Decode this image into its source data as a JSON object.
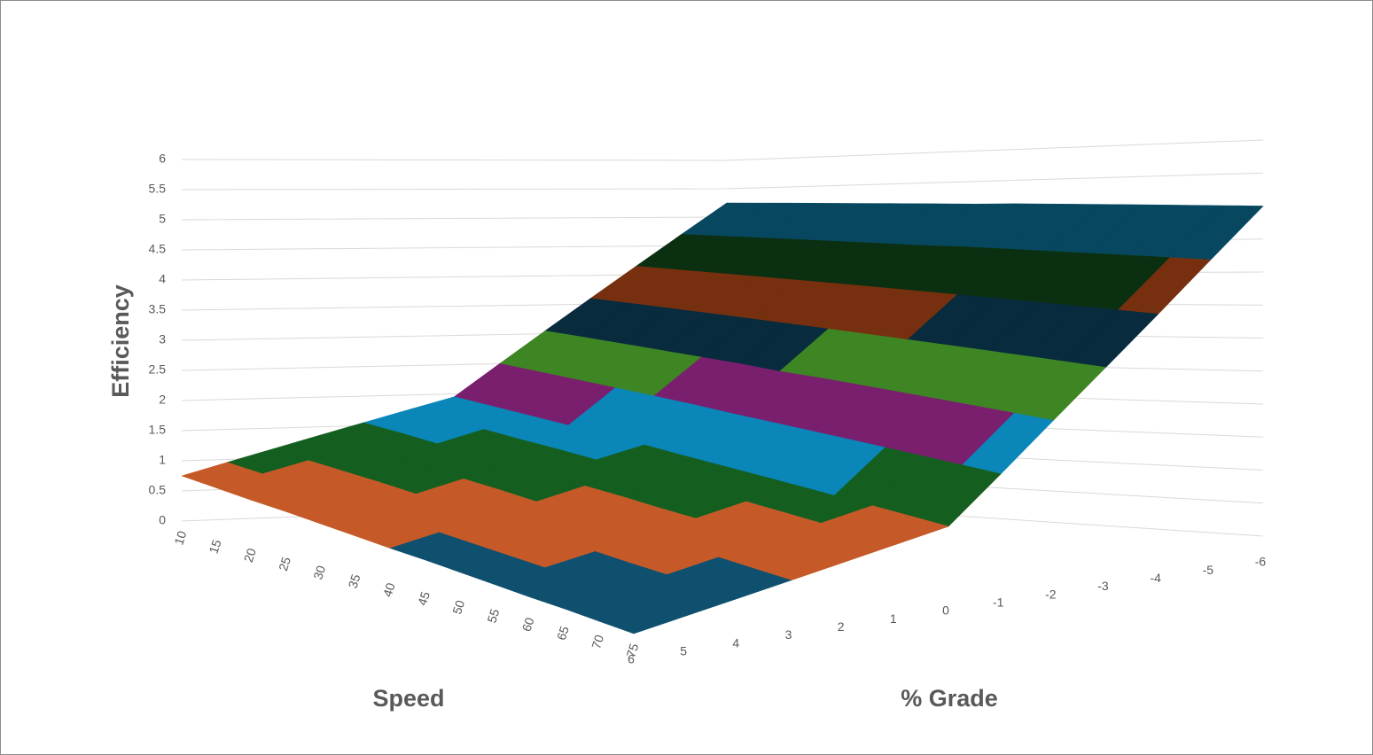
{
  "chart_data": {
    "type": "surface",
    "x_label": "Speed",
    "y_label": "% Grade",
    "z_label": "Efficiency",
    "x": [
      10,
      15,
      20,
      25,
      30,
      35,
      40,
      45,
      50,
      55,
      60,
      65,
      70,
      75
    ],
    "y": [
      6,
      5,
      4,
      3,
      2,
      1,
      0,
      -1,
      -2,
      -3,
      -4,
      -5,
      -6
    ],
    "values": [
      [
        0.75,
        0.95,
        1.15,
        1.35,
        1.55,
        1.75,
        1.95,
        2.5,
        3.05,
        3.6,
        4.15,
        4.7,
        5.25
      ],
      [
        0.69,
        0.89,
        1.08,
        1.28,
        1.48,
        1.67,
        1.87,
        2.43,
        2.99,
        3.55,
        4.11,
        4.67,
        5.23
      ],
      [
        0.63,
        0.82,
        1.02,
        1.21,
        1.4,
        1.6,
        1.79,
        2.36,
        2.93,
        3.5,
        4.07,
        4.64,
        5.21
      ],
      [
        0.58,
        0.77,
        0.96,
        1.14,
        1.33,
        1.52,
        1.71,
        2.29,
        2.87,
        3.45,
        4.03,
        4.61,
        5.19
      ],
      [
        0.52,
        0.71,
        0.89,
        1.08,
        1.26,
        1.45,
        1.63,
        2.22,
        2.81,
        3.4,
        3.99,
        4.58,
        5.17
      ],
      [
        0.46,
        0.64,
        0.82,
        1.01,
        1.19,
        1.37,
        1.55,
        2.15,
        2.75,
        3.35,
        3.95,
        4.55,
        5.15
      ],
      [
        0.4,
        0.58,
        0.75,
        0.93,
        1.11,
        1.28,
        1.46,
        2.07,
        2.68,
        3.3,
        3.91,
        4.52,
        5.13
      ],
      [
        0.35,
        0.52,
        0.69,
        0.87,
        1.04,
        1.21,
        1.38,
        2.0,
        2.63,
        3.25,
        3.87,
        4.5,
        5.12
      ],
      [
        0.29,
        0.46,
        0.63,
        0.79,
        0.96,
        1.13,
        1.3,
        1.93,
        2.57,
        3.2,
        3.83,
        4.47,
        5.1
      ],
      [
        0.23,
        0.4,
        0.56,
        0.73,
        0.89,
        1.06,
        1.22,
        1.86,
        2.51,
        3.15,
        3.79,
        4.44,
        5.08
      ],
      [
        0.17,
        0.33,
        0.49,
        0.66,
        0.82,
        0.98,
        1.14,
        1.79,
        2.45,
        3.1,
        3.75,
        4.41,
        5.06
      ],
      [
        0.12,
        0.28,
        0.43,
        0.59,
        0.75,
        0.9,
        1.06,
        1.72,
        2.39,
        3.05,
        3.71,
        4.38,
        5.04
      ],
      [
        0.06,
        0.21,
        0.37,
        0.52,
        0.67,
        0.83,
        0.98,
        1.65,
        2.33,
        3.0,
        3.67,
        4.35,
        5.02
      ],
      [
        0,
        0.15,
        0.3,
        0.45,
        0.6,
        0.75,
        0.9,
        1.58,
        2.27,
        2.95,
        3.63,
        4.32,
        5.0
      ]
    ],
    "zlim": [
      0,
      6
    ],
    "zticks": [
      0,
      0.5,
      1,
      1.5,
      2,
      2.5,
      3,
      3.5,
      4,
      4.5,
      5,
      5.5,
      6
    ],
    "band_colors": [
      "#10506f",
      "#c55a28",
      "#145f20",
      "#0a86b8",
      "#7a1f6e",
      "#3e8524",
      "#082b3e",
      "#77300f",
      "#0b3011",
      "#074860",
      "#4a1444",
      "#2d4d18"
    ],
    "grid": true
  }
}
